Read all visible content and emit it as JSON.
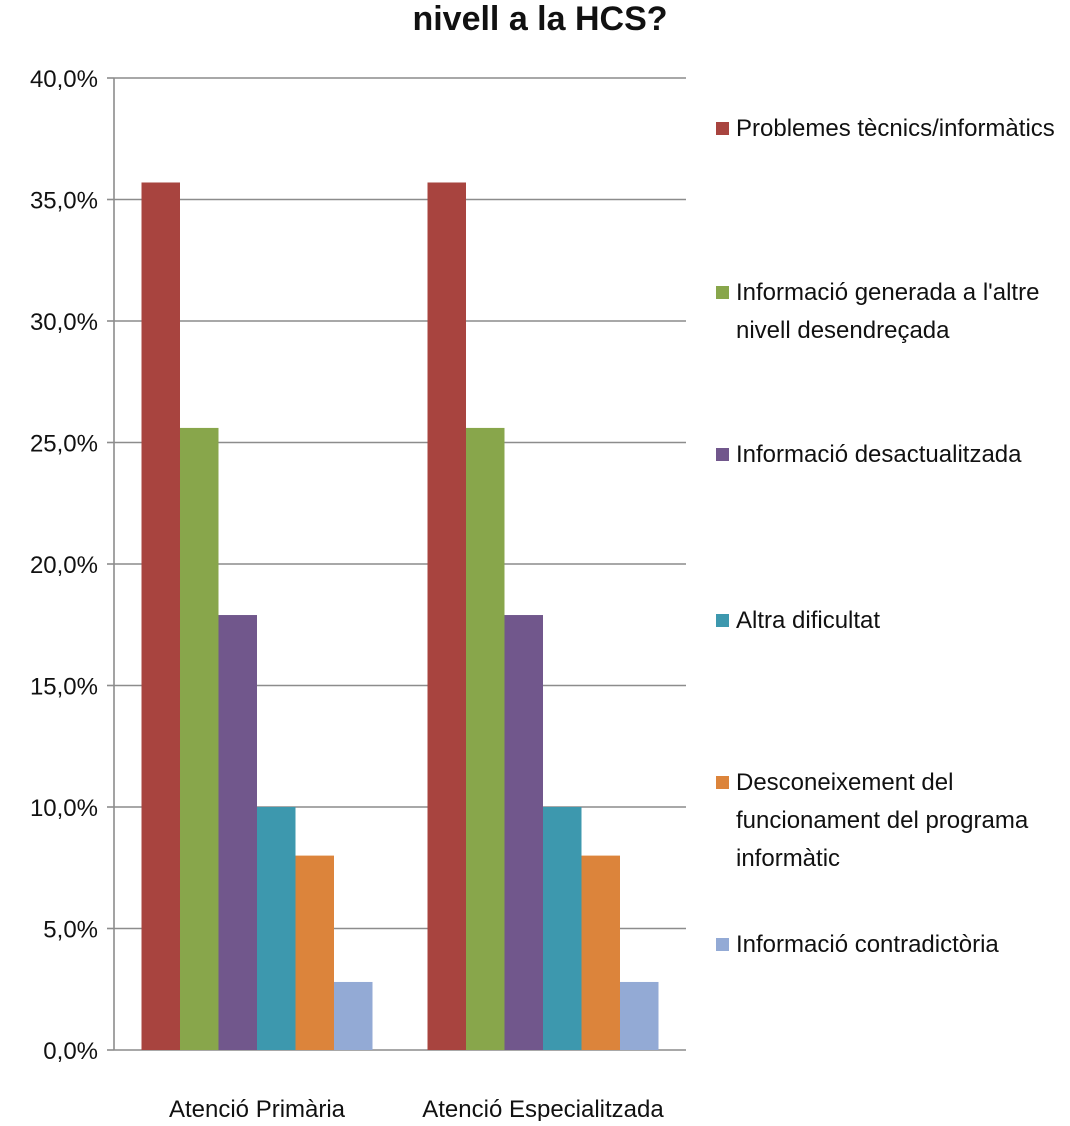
{
  "chart_data": {
    "type": "bar",
    "title": "nivell a la HCS?",
    "categories": [
      "Atenció Primària",
      "Atenció Especialitzada"
    ],
    "series": [
      {
        "name": "Problemes tècnics/informàtics",
        "color": "#A8443F",
        "values": [
          35.7,
          35.7
        ]
      },
      {
        "name": "Informació generada a l'altre nivell desendreçada",
        "color": "#88A64B",
        "values": [
          25.6,
          25.6
        ]
      },
      {
        "name": "Informació desactualitzada",
        "color": "#71578C",
        "values": [
          17.9,
          17.9
        ]
      },
      {
        "name": "Altra dificultat",
        "color": "#3D98AE",
        "values": [
          10.0,
          10.0
        ]
      },
      {
        "name": "Desconeixement del funcionament del programa informàtic",
        "color": "#DC843B",
        "values": [
          8.0,
          8.0
        ]
      },
      {
        "name": "Informació contradictòria",
        "color": "#93AAD5",
        "values": [
          2.8,
          2.8
        ]
      }
    ],
    "legend_lines": [
      [
        "Problemes tècnics/informàtics"
      ],
      [
        "Informació generada a l'altre",
        "nivell desendreçada"
      ],
      [
        "Informació desactualitzada"
      ],
      [
        "Altra dificultat"
      ],
      [
        "Desconeixement del",
        "funcionament del programa",
        "informàtic"
      ],
      [
        "Informació contradictòria"
      ]
    ],
    "y_ticks": [
      "0,0%",
      "5,0%",
      "10,0%",
      "15,0%",
      "20,0%",
      "25,0%",
      "30,0%",
      "35,0%",
      "40,0%"
    ],
    "ylim": [
      0,
      40
    ],
    "y_step": 5,
    "grid": true,
    "legend_position": "right",
    "xlabel": "",
    "ylabel": ""
  }
}
